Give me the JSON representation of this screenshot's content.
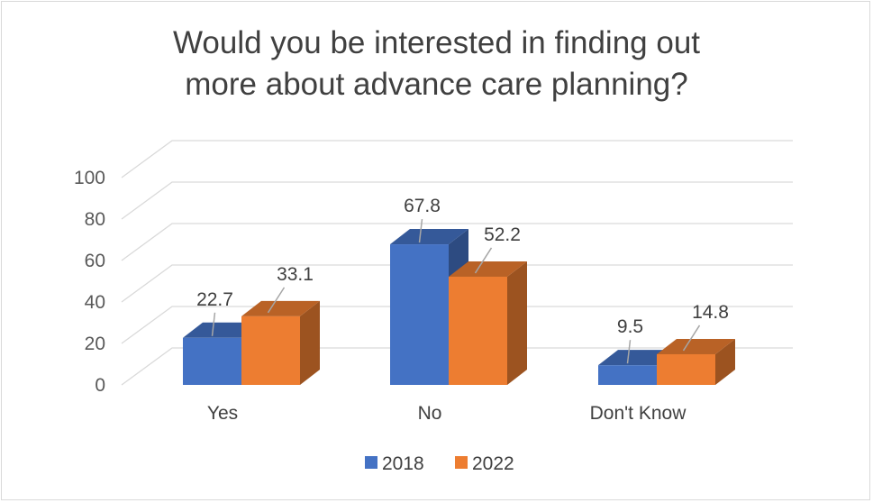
{
  "chart_data": {
    "type": "bar",
    "title_lines": [
      "Would you be interested in finding out",
      "more about advance care planning?"
    ],
    "categories": [
      "Yes",
      "No",
      "Don't Know"
    ],
    "series": [
      {
        "name": "2018",
        "values": [
          22.7,
          67.8,
          9.5
        ],
        "color": "#4472c4"
      },
      {
        "name": "2022",
        "values": [
          33.1,
          52.2,
          14.8
        ],
        "color": "#ed7d31"
      }
    ],
    "yticks": [
      0,
      20,
      40,
      60,
      80,
      100
    ],
    "ylim": [
      0,
      100
    ],
    "grid": true,
    "legend_position": "bottom",
    "style": "3d-clustered-column"
  }
}
